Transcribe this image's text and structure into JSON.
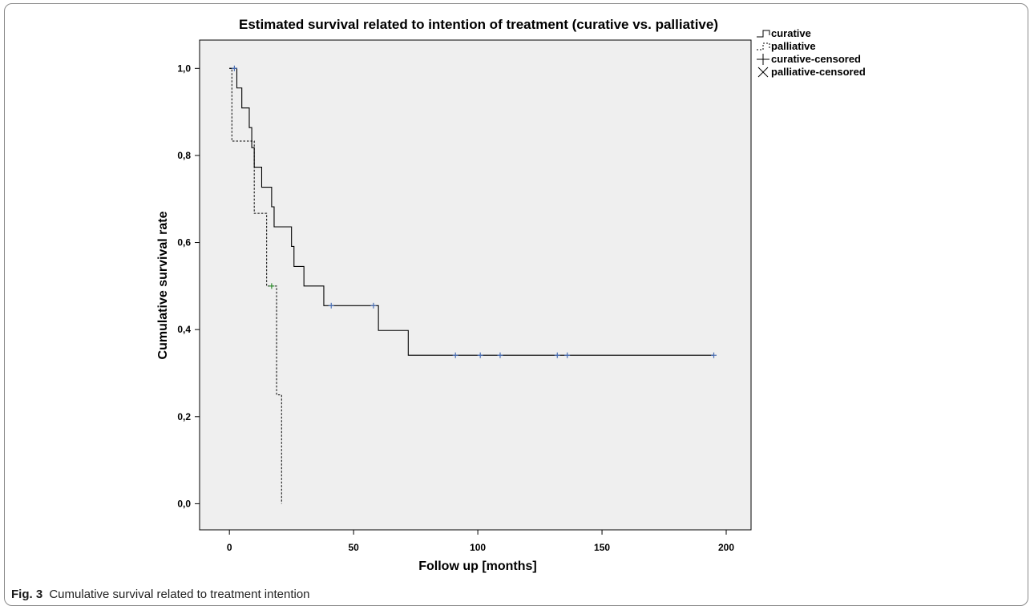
{
  "caption": {
    "fig_label": "Fig. 3",
    "text": "Cumulative survival related to treatment intention"
  },
  "chart_data": {
    "type": "line",
    "title": "Estimated survival related to intention of treatment (curative vs. palliative)",
    "xlabel": "Follow up [months]",
    "ylabel": "Cumulative survival rate",
    "xlim": [
      -12,
      210
    ],
    "ylim": [
      -0.06,
      1.065
    ],
    "xticks": [
      0,
      50,
      100,
      150,
      200
    ],
    "xtick_labels": [
      "0",
      "50",
      "100",
      "150",
      "200"
    ],
    "yticks": [
      0.0,
      0.2,
      0.4,
      0.6,
      0.8,
      1.0
    ],
    "ytick_labels": [
      "0,0",
      "0,2",
      "0,4",
      "0,6",
      "0,8",
      "1,0"
    ],
    "grid": false,
    "legend_position": "right",
    "legend": [
      {
        "label": "curative",
        "symbol": "step-solid"
      },
      {
        "label": "palliative",
        "symbol": "step-dashed"
      },
      {
        "label": "curative-censored",
        "symbol": "plus"
      },
      {
        "label": "palliative-censored",
        "symbol": "cross"
      }
    ],
    "series": [
      {
        "name": "curative",
        "style": "solid",
        "color": "#000000",
        "censor_color": "#4a6fb5",
        "steps": [
          {
            "x": 0,
            "y": 1.0
          },
          {
            "x": 3,
            "y": 0.955
          },
          {
            "x": 5,
            "y": 0.909
          },
          {
            "x": 8,
            "y": 0.864
          },
          {
            "x": 9,
            "y": 0.818
          },
          {
            "x": 10,
            "y": 0.773
          },
          {
            "x": 13,
            "y": 0.727
          },
          {
            "x": 17,
            "y": 0.682
          },
          {
            "x": 18,
            "y": 0.636
          },
          {
            "x": 25,
            "y": 0.591
          },
          {
            "x": 26,
            "y": 0.545
          },
          {
            "x": 30,
            "y": 0.5
          },
          {
            "x": 38,
            "y": 0.455
          },
          {
            "x": 60,
            "y": 0.398
          },
          {
            "x": 72,
            "y": 0.341
          }
        ],
        "end_x": 195,
        "censored": [
          {
            "x": 2,
            "y": 1.0
          },
          {
            "x": 41,
            "y": 0.455
          },
          {
            "x": 58,
            "y": 0.455
          },
          {
            "x": 91,
            "y": 0.341
          },
          {
            "x": 101,
            "y": 0.341
          },
          {
            "x": 109,
            "y": 0.341
          },
          {
            "x": 132,
            "y": 0.341
          },
          {
            "x": 136,
            "y": 0.341
          },
          {
            "x": 195,
            "y": 0.341
          }
        ]
      },
      {
        "name": "palliative",
        "style": "dashed",
        "color": "#000000",
        "censor_color": "#2e8b2e",
        "steps": [
          {
            "x": 0,
            "y": 1.0
          },
          {
            "x": 1,
            "y": 0.833
          },
          {
            "x": 10,
            "y": 0.667
          },
          {
            "x": 15,
            "y": 0.5
          },
          {
            "x": 19,
            "y": 0.25
          },
          {
            "x": 21,
            "y": 0.0
          }
        ],
        "end_x": 21,
        "censored": [
          {
            "x": 17,
            "y": 0.5
          }
        ]
      }
    ],
    "colors": {
      "plot_background": "#efefef",
      "axis": "#000000"
    }
  }
}
